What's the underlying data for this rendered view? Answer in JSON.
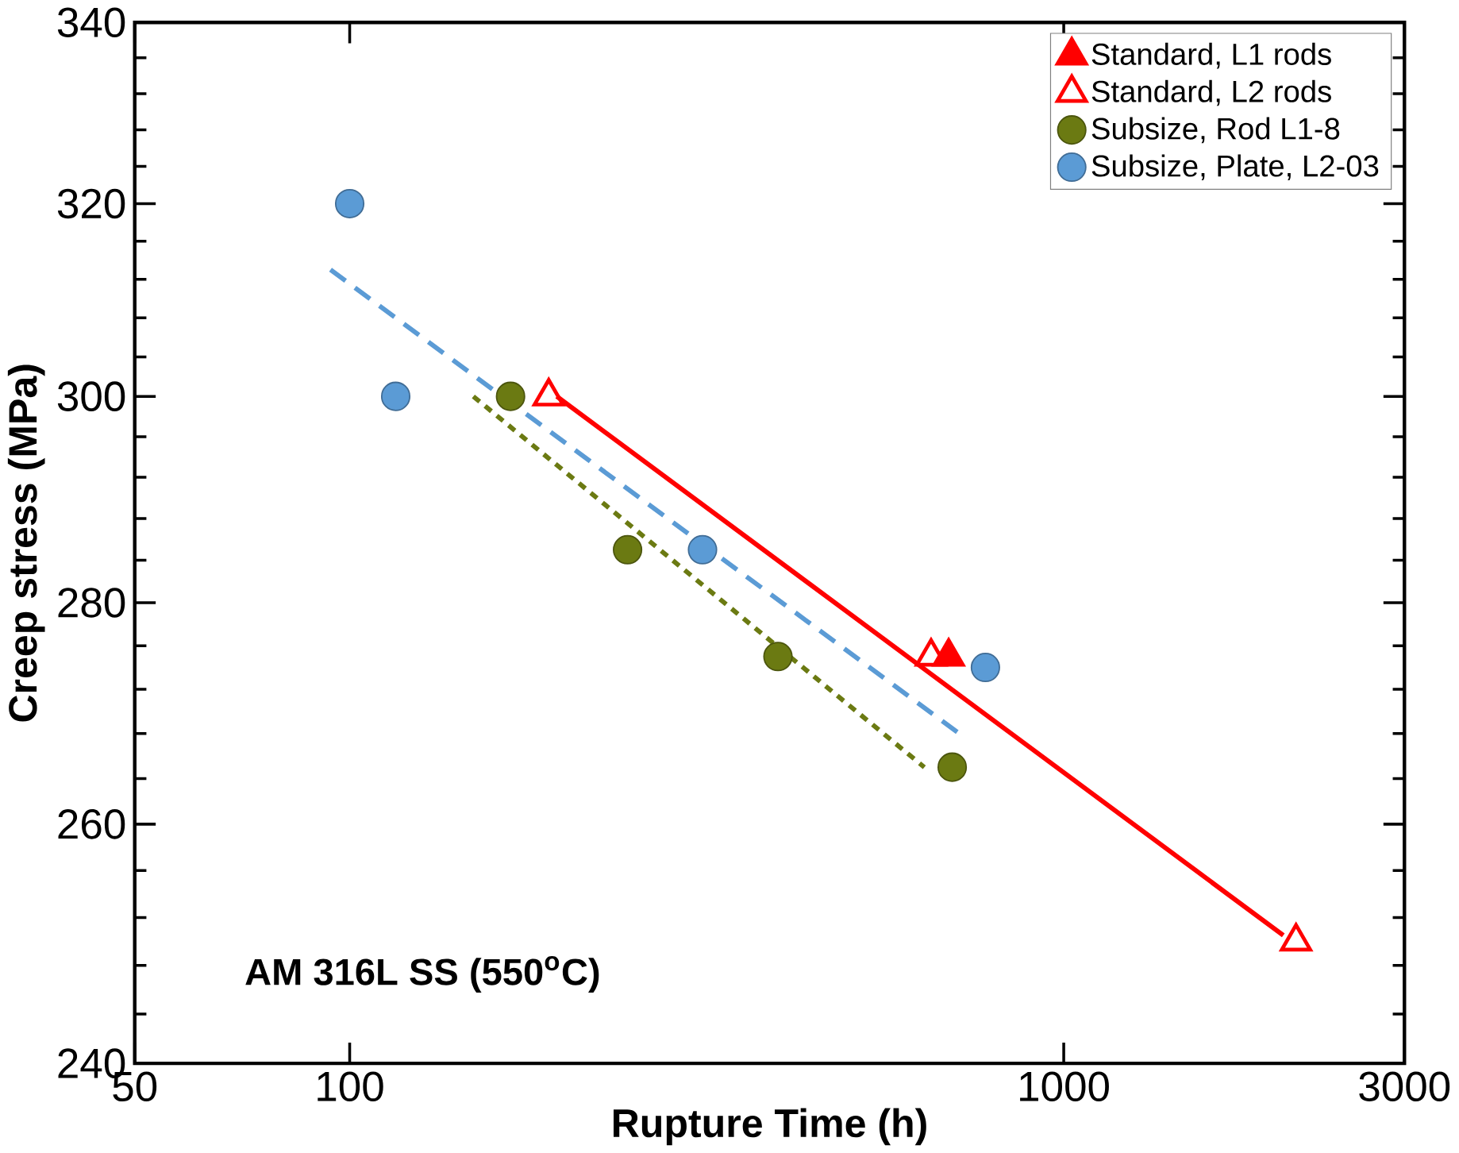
{
  "chart_data": {
    "type": "scatter",
    "xlabel": "Rupture Time (h)",
    "ylabel": "Creep stress (MPa)",
    "log": "xy",
    "xlim": [
      50,
      3000
    ],
    "ylim": [
      240,
      340
    ],
    "xticks": [
      50,
      100,
      1000,
      3000
    ],
    "yticks": [
      240,
      260,
      280,
      300,
      320,
      340
    ],
    "grid": false,
    "legend": "top right",
    "annotations": [
      "AM 316L SS (550$^{o}$C)"
    ],
    "series": [
      {
        "name": "Standard, L1 rods",
        "color": "#ff0000",
        "marker": "triangle",
        "x": [
          690
        ],
        "values": [
          275
        ]
      },
      {
        "name": "Standard, L2 rods",
        "color": "#ff0000",
        "marker": "triangle-open",
        "x": [
          190,
          652,
          2115
        ],
        "values": [
          300,
          275,
          250
        ]
      },
      {
        "name": "Subsize, Rod L1-8",
        "color": "#6b7a12",
        "marker": "circle",
        "x": [
          168,
          245,
          398,
          698
        ],
        "values": [
          300,
          285,
          275,
          265
        ]
      },
      {
        "name": "Subsize, Plate, L2-03",
        "color": "#5b9bd5",
        "marker": "circle",
        "x": [
          100,
          116,
          312,
          777
        ],
        "values": [
          320,
          300,
          285,
          274
        ]
      },
      {
        "type": "line",
        "color": "#ff0000",
        "marker": "none",
        "line_style": "solid",
        "x": [
          195,
          2030
        ],
        "values": [
          300,
          250.5
        ]
      },
      {
        "type": "line",
        "color": "#6b7a12",
        "marker": "none",
        "line_style": "dotted",
        "x": [
          149,
          638
        ],
        "values": [
          300,
          265
        ]
      },
      {
        "type": "line",
        "color": "#5b9bd5",
        "marker": "none",
        "line_style": "dashed",
        "x": [
          94,
          714
        ],
        "values": [
          313,
          268
        ]
      }
    ]
  }
}
